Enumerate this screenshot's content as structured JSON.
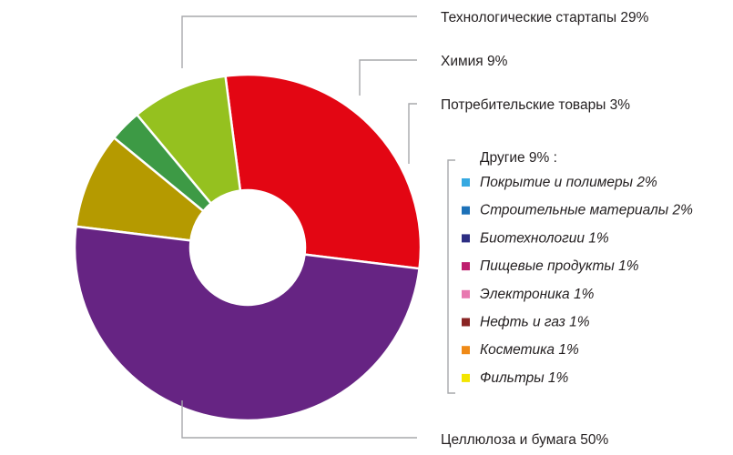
{
  "chart_data": {
    "type": "pie",
    "donut": true,
    "slices": [
      {
        "label": "Технологические стартапы 29%",
        "value": 29,
        "color": "#e30613"
      },
      {
        "label": "Химия 9%",
        "value": 9,
        "color": "#95c11f"
      },
      {
        "label": "Потребительские товары 3%",
        "value": 3,
        "color": "#3d9a45"
      },
      {
        "label": "Другие 9% :",
        "value": 9,
        "color": "#b59a00"
      },
      {
        "label": "Целлюлоза и бумага 50%",
        "value": 50,
        "color": "#662483"
      }
    ],
    "other_breakdown": [
      {
        "label": "Покрытие и полимеры 2%",
        "value": 2,
        "color": "#36a9e1"
      },
      {
        "label": "Строительные материалы 2%",
        "value": 2,
        "color": "#1d71b8"
      },
      {
        "label": "Биотехнологии 1%",
        "value": 1,
        "color": "#2d2e83"
      },
      {
        "label": "Пищевые продукты 1%",
        "value": 1,
        "color": "#be1e6e"
      },
      {
        "label": "Электроника 1%",
        "value": 1,
        "color": "#e879b0"
      },
      {
        "label": "Нефть и газ 1%",
        "value": 1,
        "color": "#8a2524"
      },
      {
        "label": "Косметика 1%",
        "value": 1,
        "color": "#ef8a17"
      },
      {
        "label": "Фильтры 1%",
        "value": 1,
        "color": "#f3e500"
      }
    ]
  }
}
